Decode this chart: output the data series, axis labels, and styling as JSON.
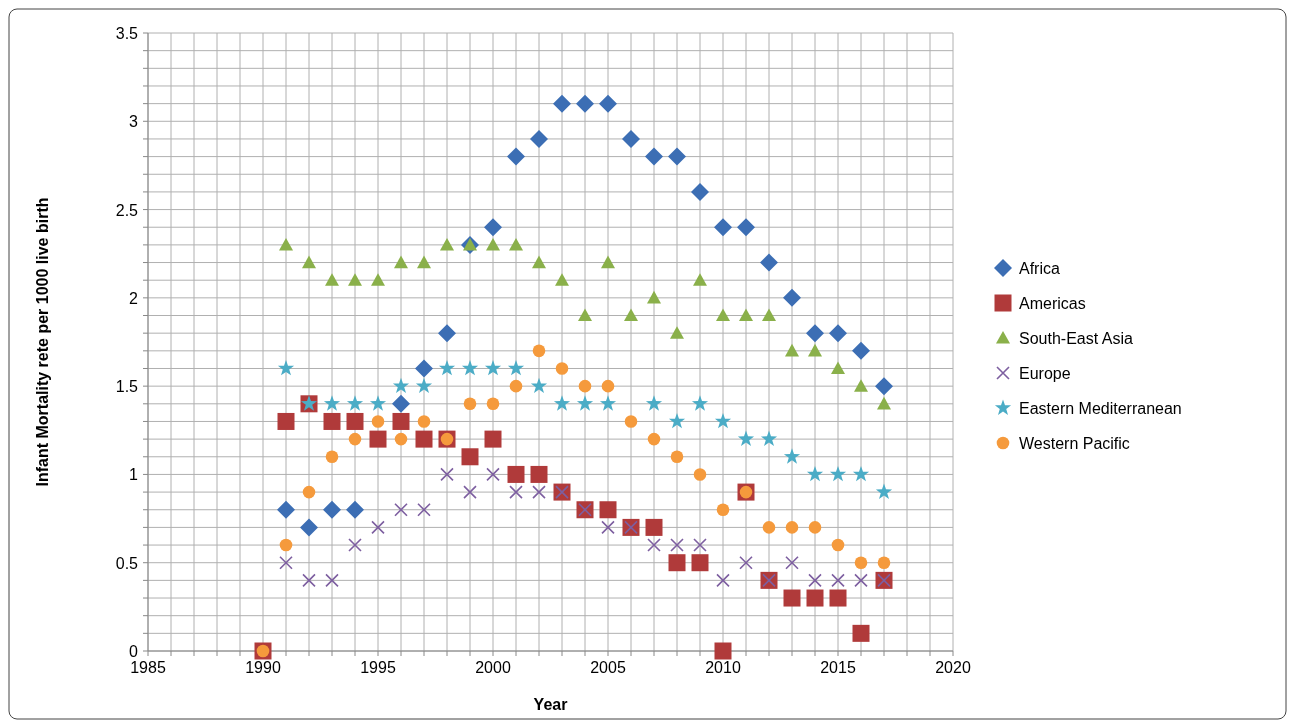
{
  "chart_data": {
    "type": "scatter",
    "xlabel": "Year",
    "ylabel": "Infant Mortality rete per 1000 live birth",
    "x": [
      1990,
      1991,
      1992,
      1993,
      1994,
      1995,
      1996,
      1997,
      1998,
      1999,
      2000,
      2001,
      2002,
      2003,
      2004,
      2005,
      2006,
      2007,
      2008,
      2009,
      2010,
      2011,
      2012,
      2013,
      2014,
      2015,
      2016,
      2017
    ],
    "series": [
      {
        "name": "Africa",
        "color": "#3c6eb4",
        "marker": "diamond",
        "values": [
          null,
          0.8,
          0.7,
          0.8,
          0.8,
          null,
          1.4,
          1.6,
          1.8,
          2.3,
          2.4,
          2.8,
          2.9,
          3.1,
          3.1,
          3.1,
          2.9,
          2.8,
          2.8,
          2.6,
          2.4,
          2.4,
          2.2,
          2.0,
          1.8,
          1.8,
          1.7,
          1.5
        ]
      },
      {
        "name": "Americas",
        "color": "#b03a3a",
        "marker": "square",
        "values": [
          0,
          1.3,
          1.4,
          1.3,
          1.3,
          1.2,
          1.3,
          1.2,
          1.2,
          1.1,
          1.2,
          1.0,
          1.0,
          0.9,
          0.8,
          0.8,
          0.7,
          0.7,
          0.5,
          0.5,
          0,
          0.9,
          0.4,
          0.3,
          0.3,
          0.3,
          0.1,
          0.4
        ]
      },
      {
        "name": "South-East Asia",
        "color": "#8ab04a",
        "marker": "triangle",
        "values": [
          null,
          2.3,
          2.2,
          2.1,
          2.1,
          2.1,
          2.2,
          2.2,
          2.3,
          2.3,
          2.3,
          2.3,
          2.2,
          2.1,
          1.9,
          2.2,
          1.9,
          2.0,
          1.8,
          2.1,
          1.9,
          1.9,
          1.9,
          1.7,
          1.7,
          1.6,
          1.5,
          1.4
        ]
      },
      {
        "name": "Europe",
        "color": "#7d5fa0",
        "marker": "cross",
        "values": [
          null,
          0.5,
          0.4,
          0.4,
          0.6,
          0.7,
          0.8,
          0.8,
          1.0,
          0.9,
          1.0,
          0.9,
          0.9,
          0.9,
          0.8,
          0.7,
          0.7,
          0.6,
          0.6,
          0.6,
          0.4,
          0.5,
          0.4,
          0.5,
          0.4,
          0.4,
          0.4,
          0.4
        ]
      },
      {
        "name": "Eastern Mediterranean",
        "color": "#4bacc6",
        "marker": "star",
        "values": [
          null,
          1.6,
          1.4,
          1.4,
          1.4,
          1.4,
          1.5,
          1.5,
          1.6,
          1.6,
          1.6,
          1.6,
          1.5,
          1.4,
          1.4,
          1.4,
          null,
          1.4,
          1.3,
          1.4,
          1.3,
          1.2,
          1.2,
          1.1,
          1.0,
          1.0,
          1.0,
          0.9
        ]
      },
      {
        "name": "Western Pacific",
        "color": "#f59a3c",
        "marker": "circle",
        "values": [
          0,
          0.6,
          0.9,
          1.1,
          1.2,
          1.3,
          1.2,
          1.3,
          1.2,
          1.4,
          1.4,
          1.5,
          1.7,
          1.6,
          1.5,
          1.5,
          1.3,
          1.2,
          1.1,
          1.0,
          0.8,
          0.9,
          0.7,
          0.7,
          0.7,
          0.6,
          0.5,
          0.5
        ]
      }
    ],
    "xlim": [
      1985,
      2020
    ],
    "xticks": [
      1985,
      {
        "value": 1986,
        "label": null
      },
      {
        "value": 1987,
        "label": null
      },
      {
        "value": 1988,
        "label": null
      },
      {
        "value": 1989,
        "label": null
      },
      1990,
      {
        "value": 1991,
        "label": null
      },
      {
        "value": 1992,
        "label": null
      },
      {
        "value": 1993,
        "label": null
      },
      {
        "value": 1994,
        "label": null
      },
      1995,
      {
        "value": 1996,
        "label": null
      },
      {
        "value": 1997,
        "label": null
      },
      {
        "value": 1998,
        "label": null
      },
      {
        "value": 1999,
        "label": null
      },
      2000,
      {
        "value": 2001,
        "label": null
      },
      {
        "value": 2002,
        "label": null
      },
      {
        "value": 2003,
        "label": null
      },
      {
        "value": 2004,
        "label": null
      },
      2005,
      {
        "value": 2006,
        "label": null
      },
      {
        "value": 2007,
        "label": null
      },
      {
        "value": 2008,
        "label": null
      },
      {
        "value": 2009,
        "label": null
      },
      2010,
      {
        "value": 2011,
        "label": null
      },
      {
        "value": 2012,
        "label": null
      },
      {
        "value": 2013,
        "label": null
      },
      {
        "value": 2014,
        "label": null
      },
      2015,
      {
        "value": 2016,
        "label": null
      },
      {
        "value": 2017,
        "label": null
      },
      {
        "value": 2018,
        "label": null
      },
      {
        "value": 2019,
        "label": null
      },
      2020
    ],
    "ylim": [
      0,
      3.5
    ],
    "yticks": [
      0,
      {
        "value": 0.1,
        "label": null
      },
      {
        "value": 0.2,
        "label": null
      },
      {
        "value": 0.3,
        "label": null
      },
      {
        "value": 0.4,
        "label": null
      },
      0.5,
      {
        "value": 0.6,
        "label": null
      },
      {
        "value": 0.7,
        "label": null
      },
      {
        "value": 0.8,
        "label": null
      },
      {
        "value": 0.9,
        "label": null
      },
      1,
      {
        "value": 1.1,
        "label": null
      },
      {
        "value": 1.2,
        "label": null
      },
      {
        "value": 1.3,
        "label": null
      },
      {
        "value": 1.4,
        "label": null
      },
      1.5,
      {
        "value": 1.6,
        "label": null
      },
      {
        "value": 1.7,
        "label": null
      },
      {
        "value": 1.8,
        "label": null
      },
      {
        "value": 1.9,
        "label": null
      },
      2,
      {
        "value": 2.1,
        "label": null
      },
      {
        "value": 2.2,
        "label": null
      },
      {
        "value": 2.3,
        "label": null
      },
      {
        "value": 2.4,
        "label": null
      },
      2.5,
      {
        "value": 2.6,
        "label": null
      },
      {
        "value": 2.7,
        "label": null
      },
      {
        "value": 2.8,
        "label": null
      },
      {
        "value": 2.9,
        "label": null
      },
      3,
      {
        "value": 3.1,
        "label": null
      },
      {
        "value": 3.2,
        "label": null
      },
      {
        "value": 3.3,
        "label": null
      },
      {
        "value": 3.4,
        "label": null
      },
      3.5
    ],
    "grid": true,
    "legend": "right"
  }
}
